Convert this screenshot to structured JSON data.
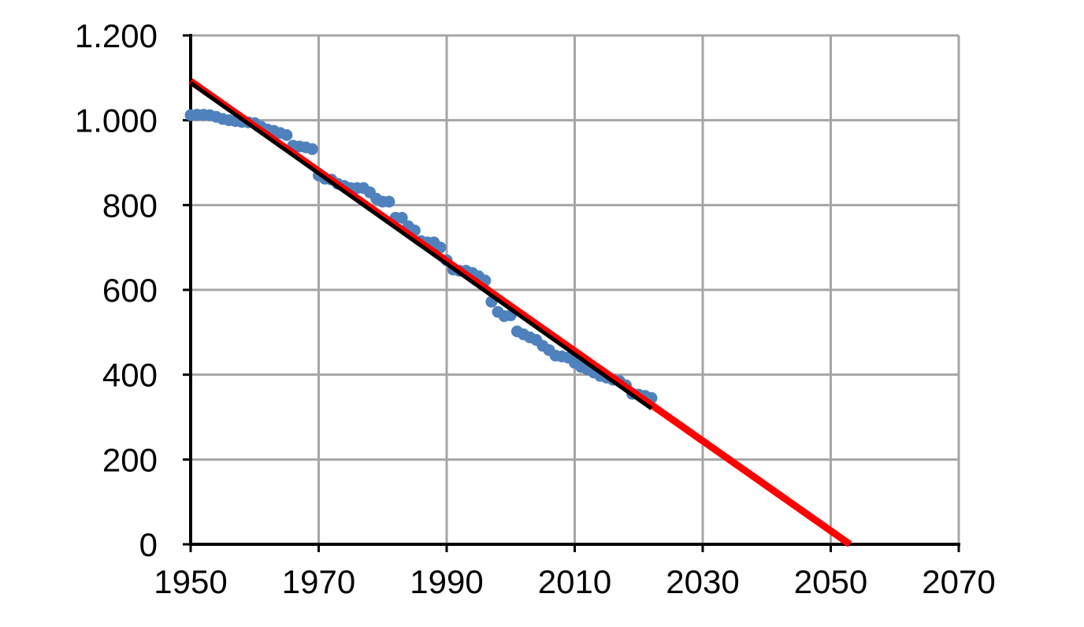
{
  "chart_data": {
    "type": "scatter",
    "title": "",
    "xlabel": "",
    "ylabel": "",
    "xlim": [
      1950,
      2070
    ],
    "ylim": [
      0,
      1200
    ],
    "x_ticks": [
      1950,
      1970,
      1990,
      2010,
      2030,
      2050,
      2070
    ],
    "y_ticks": [
      0,
      200,
      400,
      600,
      800,
      1000,
      1200
    ],
    "x_tick_labels": [
      "1950",
      "1970",
      "1990",
      "2010",
      "2030",
      "2050",
      "2070"
    ],
    "y_tick_labels": [
      "0",
      "200",
      "400",
      "600",
      "800",
      "1.000",
      "1.200"
    ],
    "grid": true,
    "legend": "none",
    "series": [
      {
        "type": "scatter",
        "color": "#4f81bd",
        "x": [
          1950,
          1951,
          1952,
          1953,
          1954,
          1955,
          1956,
          1957,
          1958,
          1959,
          1960,
          1961,
          1962,
          1963,
          1964,
          1965,
          1966,
          1967,
          1968,
          1969,
          1970,
          1971,
          1972,
          1973,
          1974,
          1975,
          1976,
          1977,
          1978,
          1979,
          1980,
          1981,
          1982,
          1983,
          1984,
          1985,
          1986,
          1987,
          1988,
          1989,
          1990,
          1991,
          1992,
          1993,
          1994,
          1995,
          1996,
          1997,
          1998,
          1999,
          2000,
          2001,
          2002,
          2003,
          2004,
          2005,
          2006,
          2007,
          2008,
          2009,
          2010,
          2011,
          2012,
          2013,
          2014,
          2015,
          2016,
          2017,
          2018,
          2019,
          2020,
          2021,
          2022
        ],
        "y": [
          1012,
          1013,
          1013,
          1012,
          1008,
          1003,
          1000,
          998,
          996,
          995,
          993,
          985,
          978,
          975,
          970,
          965,
          940,
          938,
          936,
          932,
          870,
          862,
          860,
          850,
          845,
          840,
          840,
          840,
          830,
          815,
          808,
          808,
          770,
          770,
          750,
          740,
          715,
          712,
          712,
          700,
          670,
          648,
          645,
          645,
          640,
          632,
          622,
          572,
          548,
          538,
          540,
          502,
          495,
          488,
          482,
          468,
          458,
          445,
          443,
          440,
          428,
          418,
          412,
          405,
          397,
          393,
          388,
          385,
          375,
          355,
          353,
          350,
          345
        ]
      },
      {
        "type": "line",
        "color": "#ff0000",
        "x": [
          1950,
          2053
        ],
        "y": [
          1092,
          0
        ]
      },
      {
        "type": "line",
        "color": "#000000",
        "x": [
          1950,
          2022
        ],
        "y": [
          1088,
          320
        ]
      }
    ]
  }
}
